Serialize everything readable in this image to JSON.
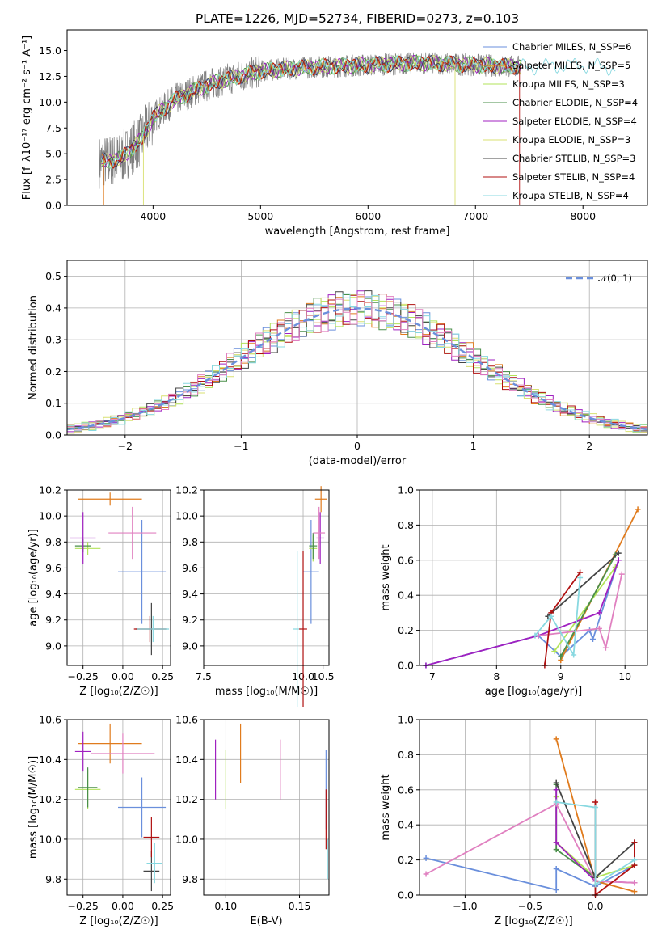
{
  "colors": [
    "#6a8fdc",
    "#e07b1d",
    "#b2e35a",
    "#4a8f4a",
    "#a020c0",
    "#d8e070",
    "#444444",
    "#b01010",
    "#88d8e0",
    "#e080c0",
    "#808080"
  ],
  "chart_data": [
    {
      "type": "line",
      "title": "PLATE=1226, MJD=52734, FIBERID=0273, z=0.103",
      "xlabel": "wavelength [Angstrom, rest frame]",
      "ylabel": "Flux [f_λ10⁻¹⁷ erg cm⁻² s⁻¹ A⁻¹]",
      "xlim": [
        3200,
        8600
      ],
      "ylim": [
        0,
        17
      ],
      "xticks": [
        "4000",
        "5000",
        "6000",
        "7000",
        "8000"
      ],
      "yticks": [
        "0.0",
        "2.5",
        "5.0",
        "7.5",
        "10.0",
        "12.5",
        "15.0"
      ],
      "grid": false,
      "legend": "upper right",
      "series": [
        {
          "name": "Chabrier MILES, N_SSP=6"
        },
        {
          "name": "Salpeter MILES, N_SSP=5"
        },
        {
          "name": "Kroupa MILES, N_SSP=3"
        },
        {
          "name": "Chabrier ELODIE, N_SSP=4"
        },
        {
          "name": "Salpeter ELODIE, N_SSP=4"
        },
        {
          "name": "Kroupa ELODIE, N_SSP=3"
        },
        {
          "name": "Chabrier STELIB, N_SSP=3"
        },
        {
          "name": "Salpeter STELIB, N_SSP=4"
        },
        {
          "name": "Kroupa STELIB, N_SSP=4"
        }
      ],
      "continuum": {
        "x": [
          3500,
          3700,
          3900,
          4000,
          4200,
          4400,
          4600,
          4800,
          5000,
          5200,
          5500,
          6000,
          6500,
          7000,
          7500,
          8000,
          8300
        ],
        "y": [
          4.2,
          4.5,
          6.5,
          8.5,
          10.2,
          11.2,
          12.0,
          12.5,
          13.0,
          13.2,
          13.4,
          13.6,
          13.8,
          13.6,
          13.4,
          13.6,
          13.3
        ]
      }
    },
    {
      "type": "bar",
      "xlabel": "(data-model)/error",
      "ylabel": "Normed distribution",
      "xlim": [
        -2.5,
        2.5
      ],
      "ylim": [
        0,
        0.55
      ],
      "xticks": [
        "−2",
        "−1",
        "0",
        "1",
        "2"
      ],
      "yticks": [
        "0.0",
        "0.1",
        "0.2",
        "0.3",
        "0.4",
        "0.5"
      ],
      "grid": true,
      "legend": "upper right",
      "legend_label": "𝒩(0, 1)",
      "bin_width": 0.1,
      "bins_start": -2.5,
      "histogram": [
        0.02,
        0.03,
        0.03,
        0.03,
        0.04,
        0.06,
        0.06,
        0.07,
        0.08,
        0.12,
        0.11,
        0.12,
        0.1,
        0.13,
        0.17,
        0.16,
        0.18,
        0.2,
        0.21,
        0.23,
        0.23,
        0.22,
        0.31,
        0.28,
        0.3,
        0.33,
        0.35,
        0.37,
        0.41,
        0.45,
        0.44,
        0.45,
        0.44,
        0.42,
        0.39,
        0.38,
        0.36,
        0.35,
        0.33,
        0.31,
        0.3,
        0.33,
        0.29,
        0.27,
        0.24,
        0.2,
        0.22,
        0.21,
        0.18,
        0.17,
        0.15,
        0.14,
        0.13,
        0.12,
        0.1,
        0.09,
        0.08,
        0.07,
        0.06,
        0.05,
        0.05,
        0.05,
        0.04,
        0.04,
        0.04,
        0.03,
        0.03,
        0.03,
        0.03,
        0.02,
        0.02,
        0.02,
        0.02,
        0.02,
        0.02,
        0.02,
        0.02,
        0.02,
        0.02,
        0.02
      ]
    },
    {
      "type": "scatter",
      "xlabel": "Z [log₁₀(Z/Z☉)]",
      "ylabel": "age  [log₁₀(age/yr)]",
      "xlim": [
        -0.35,
        0.3
      ],
      "ylim": [
        8.85,
        10.2
      ],
      "xticks": [
        "−0.25",
        "0.00",
        "0.25"
      ],
      "yticks": [
        "9.0",
        "9.2",
        "9.4",
        "9.6",
        "9.8",
        "10.0",
        "10.2"
      ],
      "grid": true,
      "points": [
        {
          "x": 0.12,
          "y": 9.57,
          "xerr": 0.15,
          "yerr": 0.4,
          "c": 0
        },
        {
          "x": -0.08,
          "y": 10.13,
          "xerr": 0.2,
          "yerr": 0.05,
          "c": 1
        },
        {
          "x": -0.22,
          "y": 9.75,
          "xerr": 0.08,
          "yerr": 0.05,
          "c": 2
        },
        {
          "x": -0.25,
          "y": 9.77,
          "xerr": 0.05,
          "yerr": 0.05,
          "c": 3
        },
        {
          "x": -0.25,
          "y": 9.83,
          "xerr": 0.08,
          "yerr": 0.2,
          "c": 4
        },
        {
          "x": 0.06,
          "y": 9.87,
          "xerr": 0.15,
          "yerr": 0.2,
          "c": 9
        },
        {
          "x": 0.18,
          "y": 9.13,
          "xerr": 0.1,
          "yerr": 0.2,
          "c": 6
        },
        {
          "x": 0.17,
          "y": 9.13,
          "xerr": 0.1,
          "yerr": 0.1,
          "c": 7
        },
        {
          "x": 0.19,
          "y": 9.13,
          "xerr": 0.1,
          "yerr": 0.1,
          "c": 8
        }
      ]
    },
    {
      "type": "scatter",
      "xlabel": "mass [log₁₀(M/M☉)]",
      "xlim": [
        7.5,
        10.65
      ],
      "ylim": [
        8.85,
        10.2
      ],
      "xticks": [
        "7.5",
        "10.0",
        "10.5"
      ],
      "yticks": [
        "9.0",
        "9.2",
        "9.4",
        "9.6",
        "9.8",
        "10.0",
        "10.2"
      ],
      "grid": true,
      "points": [
        {
          "x": 10.2,
          "y": 9.57,
          "xerr": 0.2,
          "yerr": 0.4,
          "c": 0
        },
        {
          "x": 10.45,
          "y": 10.13,
          "xerr": 0.15,
          "yerr": 0.1,
          "c": 1
        },
        {
          "x": 10.25,
          "y": 9.75,
          "xerr": 0.1,
          "yerr": 0.1,
          "c": 2
        },
        {
          "x": 10.25,
          "y": 9.77,
          "xerr": 0.1,
          "yerr": 0.1,
          "c": 3
        },
        {
          "x": 10.43,
          "y": 9.83,
          "xerr": 0.1,
          "yerr": 0.2,
          "c": 4
        },
        {
          "x": 10.4,
          "y": 9.87,
          "xerr": 0.15,
          "yerr": 0.2,
          "c": 9
        },
        {
          "x": 9.85,
          "y": 9.13,
          "xerr": 0.1,
          "yerr": 0.6,
          "c": 8
        },
        {
          "x": 10.0,
          "y": 9.13,
          "xerr": 0.1,
          "yerr": 0.6,
          "c": 7
        }
      ]
    },
    {
      "type": "line",
      "xlabel": "age  [log₁₀(age/yr)]",
      "ylabel": "mass weight",
      "xlim": [
        6.8,
        10.35
      ],
      "ylim": [
        0,
        1
      ],
      "xticks": [
        "7",
        "8",
        "9",
        "10"
      ],
      "yticks": [
        "0.0",
        "0.2",
        "0.4",
        "0.6",
        "0.8",
        "1.0"
      ],
      "grid": true,
      "series": [
        {
          "x": [
            6.9,
            8.65,
            9.0,
            9.45,
            9.5,
            9.9
          ],
          "y": [
            0.0,
            0.17,
            0.05,
            0.2,
            0.15,
            0.6
          ],
          "c": 0
        },
        {
          "x": [
            9.0,
            10.2
          ],
          "y": [
            0.03,
            0.89
          ],
          "c": 1
        },
        {
          "x": [
            8.9,
            9.85
          ],
          "y": [
            0.08,
            0.56
          ],
          "c": 2
        },
        {
          "x": [
            9.0,
            9.85
          ],
          "y": [
            0.05,
            0.63
          ],
          "c": 3
        },
        {
          "x": [
            6.9,
            8.65,
            9.6,
            9.9
          ],
          "y": [
            0.0,
            0.17,
            0.3,
            0.6
          ],
          "c": 4
        },
        {
          "x": [
            8.65,
            9.6,
            9.7,
            9.95
          ],
          "y": [
            0.17,
            0.21,
            0.1,
            0.52
          ],
          "c": 9
        },
        {
          "x": [
            8.8,
            9.9
          ],
          "y": [
            0.28,
            0.64
          ],
          "c": 6
        },
        {
          "x": [
            8.75,
            8.85,
            9.3
          ],
          "y": [
            0.0,
            0.3,
            0.53
          ],
          "c": 7
        },
        {
          "x": [
            8.6,
            8.85,
            9.2,
            9.3
          ],
          "y": [
            0.17,
            0.28,
            0.06,
            0.5
          ],
          "c": 8
        }
      ]
    },
    {
      "type": "scatter",
      "xlabel": "Z [log₁₀(Z/Z☉)]",
      "ylabel": "mass [log₁₀(M/M☉)]",
      "xlim": [
        -0.35,
        0.3
      ],
      "ylim": [
        9.72,
        10.6
      ],
      "xticks": [
        "−0.25",
        "0.00",
        "0.25"
      ],
      "yticks": [
        "9.8",
        "10.0",
        "10.2",
        "10.4",
        "10.6"
      ],
      "grid": true,
      "points": [
        {
          "x": 0.12,
          "y": 10.16,
          "xerr": 0.15,
          "yerr": 0.15,
          "c": 0
        },
        {
          "x": -0.08,
          "y": 10.48,
          "xerr": 0.2,
          "yerr": 0.1,
          "c": 1
        },
        {
          "x": -0.22,
          "y": 10.25,
          "xerr": 0.08,
          "yerr": 0.1,
          "c": 2
        },
        {
          "x": -0.22,
          "y": 10.26,
          "xerr": 0.06,
          "yerr": 0.1,
          "c": 3
        },
        {
          "x": -0.25,
          "y": 10.44,
          "xerr": 0.05,
          "yerr": 0.1,
          "c": 4
        },
        {
          "x": 0.0,
          "y": 10.43,
          "xerr": 0.2,
          "yerr": 0.1,
          "c": 9
        },
        {
          "x": 0.18,
          "y": 9.84,
          "xerr": 0.05,
          "yerr": 0.1,
          "c": 6
        },
        {
          "x": 0.18,
          "y": 10.01,
          "xerr": 0.05,
          "yerr": 0.1,
          "c": 7
        },
        {
          "x": 0.2,
          "y": 9.88,
          "xerr": 0.05,
          "yerr": 0.1,
          "c": 8
        }
      ]
    },
    {
      "type": "scatter",
      "xlabel": "E(B-V)",
      "xlim": [
        0.085,
        0.17
      ],
      "ylim": [
        9.72,
        10.6
      ],
      "xticks": [
        "0.10",
        "0.15"
      ],
      "yticks": [
        "9.8",
        "10.0",
        "10.2",
        "10.4",
        "10.6"
      ],
      "grid": true,
      "points": [
        {
          "x": 0.093,
          "y": 10.35,
          "yerr": 0.15,
          "c": 4
        },
        {
          "x": 0.1,
          "y": 10.3,
          "yerr": 0.15,
          "c": 2
        },
        {
          "x": 0.11,
          "y": 10.43,
          "yerr": 0.15,
          "c": 1
        },
        {
          "x": 0.137,
          "y": 10.35,
          "yerr": 0.15,
          "c": 9
        },
        {
          "x": 0.168,
          "y": 10.25,
          "yerr": 0.2,
          "c": 0
        },
        {
          "x": 0.168,
          "y": 10.1,
          "yerr": 0.15,
          "c": 7
        },
        {
          "x": 0.169,
          "y": 9.9,
          "yerr": 0.1,
          "c": 8
        }
      ]
    },
    {
      "type": "line",
      "xlabel": "Z [log₁₀(Z/Z☉)]",
      "ylabel": "mass weight",
      "xlim": [
        -1.35,
        0.4
      ],
      "ylim": [
        0,
        1
      ],
      "xticks": [
        "−1.0",
        "−0.5",
        "0.0"
      ],
      "yticks": [
        "0.0",
        "0.2",
        "0.4",
        "0.6",
        "0.8",
        "1.0"
      ],
      "grid": true,
      "series": [
        {
          "x": [
            -1.3,
            -0.3,
            -0.3,
            0.0,
            0.3
          ],
          "y": [
            0.21,
            0.03,
            0.15,
            0.05,
            0.17
          ],
          "c": 0
        },
        {
          "x": [
            -0.3,
            0.0,
            0.3
          ],
          "y": [
            0.89,
            0.08,
            0.02
          ],
          "c": 1
        },
        {
          "x": [
            -0.3,
            -0.3,
            0.0,
            0.3
          ],
          "y": [
            0.56,
            0.3,
            0.1,
            0.17
          ],
          "c": 2
        },
        {
          "x": [
            -0.3,
            -0.3,
            0.0
          ],
          "y": [
            0.63,
            0.26,
            0.1
          ],
          "c": 3
        },
        {
          "x": [
            -0.3,
            -0.3,
            0.0,
            0.3
          ],
          "y": [
            0.6,
            0.3,
            0.08,
            0.07
          ],
          "c": 4
        },
        {
          "x": [
            -1.3,
            -0.3,
            0.0,
            0.3
          ],
          "y": [
            0.12,
            0.52,
            0.08,
            0.07
          ],
          "c": 9
        },
        {
          "x": [
            -0.3,
            0.0,
            0.3
          ],
          "y": [
            0.64,
            0.1,
            0.3
          ],
          "c": 6
        },
        {
          "x": [
            0.0,
            0.0,
            0.3,
            0.3
          ],
          "y": [
            0.53,
            0.0,
            0.17,
            0.3
          ],
          "c": 7
        },
        {
          "x": [
            -0.3,
            0.0,
            0.0,
            0.3
          ],
          "y": [
            0.53,
            0.5,
            0.06,
            0.2
          ],
          "c": 8
        }
      ]
    }
  ]
}
